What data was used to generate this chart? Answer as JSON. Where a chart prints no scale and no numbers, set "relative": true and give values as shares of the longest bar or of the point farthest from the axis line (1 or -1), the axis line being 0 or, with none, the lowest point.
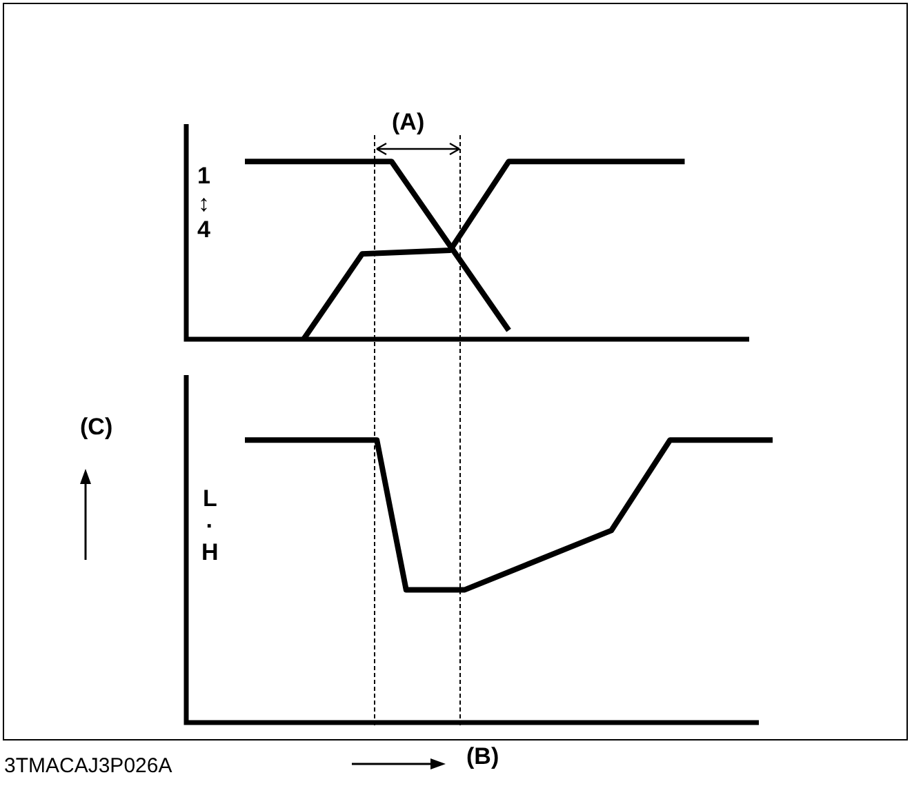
{
  "chart_data": [
    {
      "type": "line",
      "relative": true,
      "ylabel": "1↕4",
      "annotations": [
        "(A)"
      ],
      "legend": false,
      "marker": "none",
      "line_style": "solid",
      "categories": [
        null,
        null,
        null,
        null,
        null,
        null,
        null,
        null,
        null,
        null,
        null,
        null,
        null,
        null,
        null,
        null,
        null,
        null,
        null,
        null,
        null,
        null,
        null,
        null,
        null,
        null,
        null,
        null,
        null,
        null,
        null,
        null,
        null,
        null,
        null,
        null,
        null,
        null,
        null,
        null,
        null
      ],
      "series": [
        {
          "color": "#000000",
          "values": [
            null,
            null,
            null,
            null,
            1,
            null,
            null,
            null,
            null,
            null,
            null,
            null,
            null,
            null,
            1,
            null,
            null,
            null,
            null,
            null,
            null,
            null,
            0.05,
            null,
            null,
            null,
            null,
            null,
            null,
            null,
            null,
            null,
            null,
            null,
            null,
            null,
            null,
            null,
            null,
            null,
            null
          ]
        },
        {
          "color": "#000000",
          "values": [
            null,
            null,
            null,
            null,
            null,
            null,
            null,
            null,
            0,
            null,
            null,
            null,
            0.48,
            null,
            null,
            null,
            null,
            null,
            0.5,
            null,
            null,
            null,
            1,
            null,
            null,
            null,
            null,
            null,
            null,
            null,
            null,
            null,
            null,
            null,
            1,
            null,
            null,
            null,
            null,
            null,
            null
          ]
        }
      ]
    },
    {
      "type": "line",
      "relative": true,
      "ylabel": "L·H",
      "xlabel": "(B)",
      "annotations": [
        "(C)",
        "3TMACAJ3P026A"
      ],
      "legend": false,
      "marker": "none",
      "line_style": "solid",
      "categories": [
        null,
        null,
        null,
        null,
        null,
        null,
        null,
        null,
        null,
        null,
        null,
        null,
        null,
        null,
        null,
        null,
        null,
        null,
        null,
        null,
        null,
        null,
        null,
        null,
        null,
        null,
        null,
        null,
        null,
        null,
        null,
        null,
        null,
        null,
        null,
        null,
        null,
        null,
        null,
        null,
        null
      ],
      "series": [
        {
          "color": "#000000",
          "values": [
            null,
            null,
            null,
            null,
            1,
            null,
            null,
            null,
            null,
            null,
            null,
            null,
            null,
            1,
            null,
            0.47,
            null,
            null,
            null,
            0.47,
            null,
            null,
            null,
            null,
            null,
            null,
            null,
            null,
            null,
            0.68,
            null,
            null,
            null,
            1,
            null,
            null,
            null,
            null,
            null,
            null,
            1
          ]
        }
      ]
    }
  ]
}
